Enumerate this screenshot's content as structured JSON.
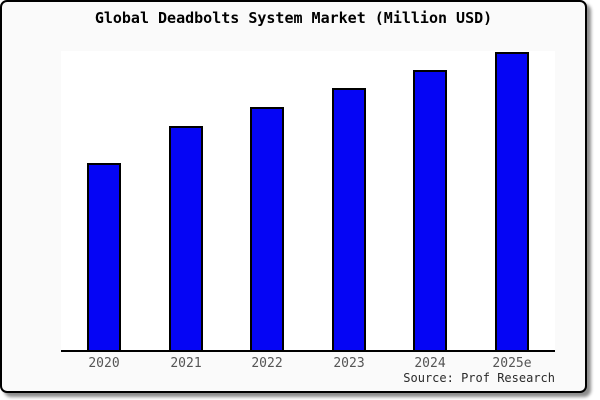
{
  "frame": {
    "background_color": "#fafafa",
    "plot_background_color": "#ffffff",
    "border_color": "#000000"
  },
  "chart_data": {
    "type": "bar",
    "title": "Global Deadbolts System Market (Million USD)",
    "categories": [
      "2020",
      "2021",
      "2022",
      "2023",
      "2024",
      "2025e"
    ],
    "values": [
      62.5,
      75.0,
      81.3,
      87.6,
      93.5,
      99.8
    ],
    "value_scale": "relative units estimated from bar heights (no y-axis tick labels shown)",
    "xlabel": "",
    "ylabel": "",
    "ylim": [
      0,
      100
    ],
    "grid": "off",
    "legend_position": "none",
    "y_axis_labels": "none",
    "bar_color": "#0505f5",
    "bar_border_color": "#000000",
    "axis_color": "#000000"
  },
  "source": {
    "label": "Source: Prof Research"
  }
}
